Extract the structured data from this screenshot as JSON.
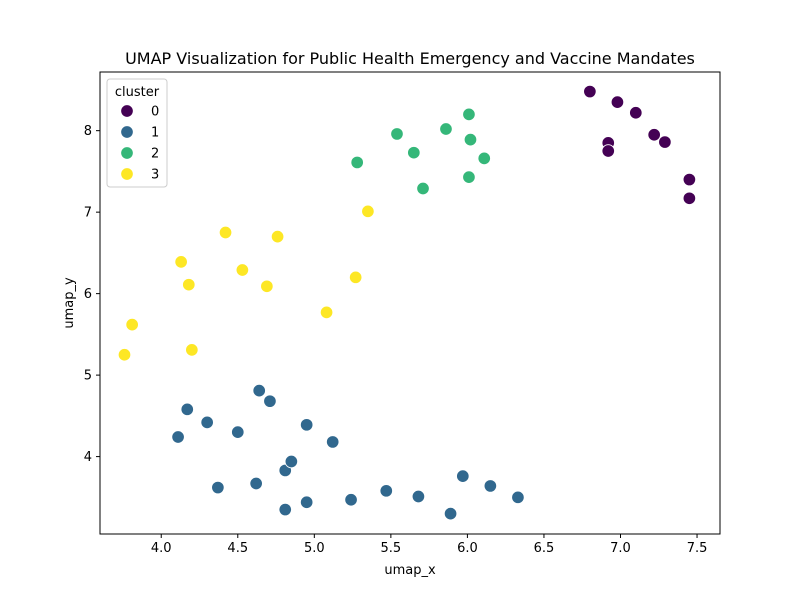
{
  "chart_data": {
    "type": "scatter",
    "title": "UMAP Visualization for Public Health Emergency and Vaccine Mandates",
    "xlabel": "umap_x",
    "ylabel": "umap_y",
    "xlim": [
      3.6,
      7.65
    ],
    "ylim": [
      3.05,
      8.72
    ],
    "xticks": [
      4.0,
      4.5,
      5.0,
      5.5,
      6.0,
      6.5,
      7.0,
      7.5
    ],
    "xtick_labels": [
      "4.0",
      "4.5",
      "5.0",
      "5.5",
      "6.0",
      "6.5",
      "7.0",
      "7.5"
    ],
    "yticks": [
      4,
      5,
      6,
      7,
      8
    ],
    "ytick_labels": [
      "4",
      "5",
      "6",
      "7",
      "8"
    ],
    "grid": false,
    "legend": {
      "title": "cluster",
      "placement": "top-left"
    },
    "series": [
      {
        "name": "0",
        "color": "#440154",
        "points": [
          [
            6.8,
            8.48
          ],
          [
            6.98,
            8.35
          ],
          [
            7.1,
            8.22
          ],
          [
            6.92,
            7.85
          ],
          [
            6.92,
            7.75
          ],
          [
            7.22,
            7.95
          ],
          [
            7.29,
            7.86
          ],
          [
            7.45,
            7.4
          ],
          [
            7.45,
            7.17
          ]
        ]
      },
      {
        "name": "1",
        "color": "#31688e",
        "points": [
          [
            4.11,
            4.24
          ],
          [
            4.17,
            4.58
          ],
          [
            4.3,
            4.42
          ],
          [
            4.5,
            4.3
          ],
          [
            4.37,
            3.62
          ],
          [
            4.64,
            4.81
          ],
          [
            4.71,
            4.68
          ],
          [
            4.62,
            3.67
          ],
          [
            4.81,
            3.83
          ],
          [
            4.85,
            3.94
          ],
          [
            4.81,
            3.35
          ],
          [
            4.95,
            4.39
          ],
          [
            4.95,
            3.44
          ],
          [
            5.12,
            4.18
          ],
          [
            5.24,
            3.47
          ],
          [
            5.47,
            3.58
          ],
          [
            5.68,
            3.51
          ],
          [
            5.89,
            3.3
          ],
          [
            5.97,
            3.76
          ],
          [
            6.15,
            3.64
          ],
          [
            6.33,
            3.5
          ]
        ]
      },
      {
        "name": "2",
        "color": "#35b779",
        "points": [
          [
            5.28,
            7.61
          ],
          [
            5.54,
            7.96
          ],
          [
            5.65,
            7.73
          ],
          [
            5.71,
            7.29
          ],
          [
            5.86,
            8.02
          ],
          [
            6.01,
            8.2
          ],
          [
            6.02,
            7.89
          ],
          [
            6.01,
            7.43
          ],
          [
            6.11,
            7.66
          ]
        ]
      },
      {
        "name": "3",
        "color": "#fde725",
        "points": [
          [
            3.76,
            5.25
          ],
          [
            3.81,
            5.62
          ],
          [
            4.13,
            6.39
          ],
          [
            4.18,
            6.11
          ],
          [
            4.2,
            5.31
          ],
          [
            4.42,
            6.75
          ],
          [
            4.53,
            6.29
          ],
          [
            4.69,
            6.09
          ],
          [
            4.76,
            6.7
          ],
          [
            5.08,
            5.77
          ],
          [
            5.27,
            6.2
          ],
          [
            5.35,
            7.01
          ]
        ]
      }
    ]
  }
}
